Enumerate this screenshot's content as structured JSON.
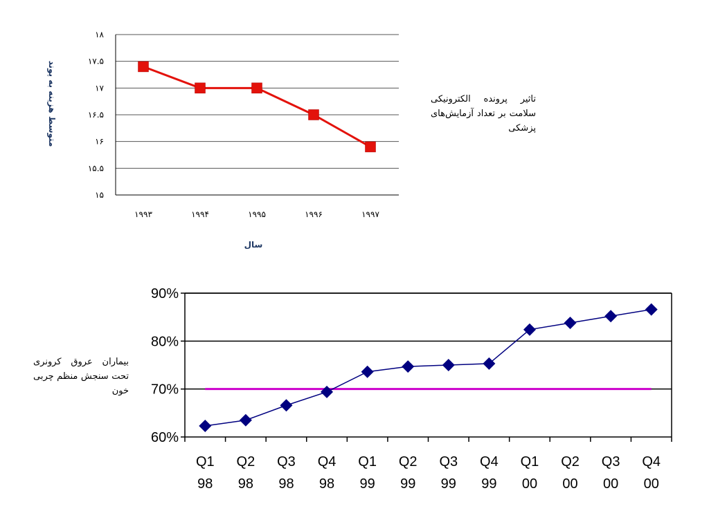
{
  "chart_data": [
    {
      "type": "line",
      "categories": [
        "۱۹۹۳",
        "۱۹۹۴",
        "۱۹۹۵",
        "۱۹۹۶",
        "۱۹۹۷"
      ],
      "y_tick_labels": [
        "۱۵",
        "۱۵.۵",
        "۱۶",
        "۱۶.۵",
        "۱۷",
        "۱۷.۵",
        "۱۸"
      ],
      "series": [
        {
          "values": [
            17.4,
            17.0,
            17.0,
            16.5,
            15.9
          ]
        }
      ],
      "xlabel": "سال",
      "ylabel": "متوسط هزینه به پوند",
      "ylim": [
        15,
        18
      ],
      "grid": true,
      "line_color": "#e3120b",
      "marker": "square"
    },
    {
      "type": "line",
      "categories": [
        "Q1 98",
        "Q2 98",
        "Q3 98",
        "Q4 98",
        "Q1 99",
        "Q2 99",
        "Q3 99",
        "Q4 99",
        "Q1 00",
        "Q2 00",
        "Q3 00",
        "Q4 00"
      ],
      "y_tick_labels": [
        "60%",
        "70%",
        "80%",
        "90%"
      ],
      "series": [
        {
          "values": [
            62.3,
            63.5,
            66.6,
            69.4,
            73.6,
            74.7,
            75.0,
            75.3,
            82.4,
            83.8,
            85.2,
            86.6
          ],
          "color": "#000080",
          "marker": "diamond"
        }
      ],
      "reference_line": {
        "value": 70,
        "color": "#cc00cc"
      },
      "ylim": [
        60,
        90
      ],
      "grid": true
    }
  ],
  "captions": {
    "chart1": "تاثیر پرونده الکترونیکی سلامت بر تعداد آزمایش‌های پزشکی",
    "chart2": "بیماران عروق کرونری تحت سنجش منظم چربی خون"
  }
}
